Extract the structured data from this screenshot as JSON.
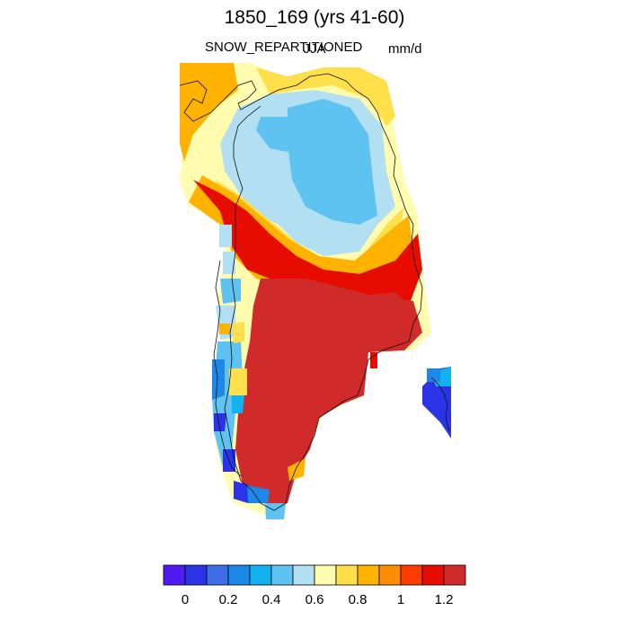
{
  "title": "1850_169 (yrs 41-60)",
  "variable": "SNOW_REPARTITIONED",
  "season": "JJA",
  "units": "mm/d",
  "colorbar": {
    "colors": [
      "#4f1bf2",
      "#2b33e6",
      "#3d6ee6",
      "#1c88e8",
      "#12b2f0",
      "#5fc3f2",
      "#b2e0f2",
      "#fffcb0",
      "#ffe04a",
      "#ffb300",
      "#ff8c00",
      "#ff3c00",
      "#e60c00",
      "#d12a2a"
    ],
    "tick_labels": [
      "0",
      "0.2",
      "0.4",
      "0.6",
      "0.8",
      "1",
      "1.2"
    ]
  },
  "chart_data": {
    "type": "heatmap",
    "title": "1850_169 (yrs 41-60)",
    "variable": "SNOW_REPARTITIONED",
    "season": "JJA",
    "units": "mm/d",
    "colorbar_range": [
      0,
      1.3
    ],
    "colorbar_ticks": [
      0,
      0.2,
      0.4,
      0.6,
      0.8,
      1.0,
      1.2
    ],
    "region": "Greenland",
    "pattern": {
      "north_coast": [
        0.8,
        1.1
      ],
      "north_interior": [
        0.5,
        0.6
      ],
      "central_band": [
        1.0,
        1.3
      ],
      "south_interior": [
        1.3,
        1.3
      ],
      "west_coast_south": [
        0.2,
        0.6
      ],
      "east_coast_south": [
        0.1,
        0.4
      ]
    }
  }
}
